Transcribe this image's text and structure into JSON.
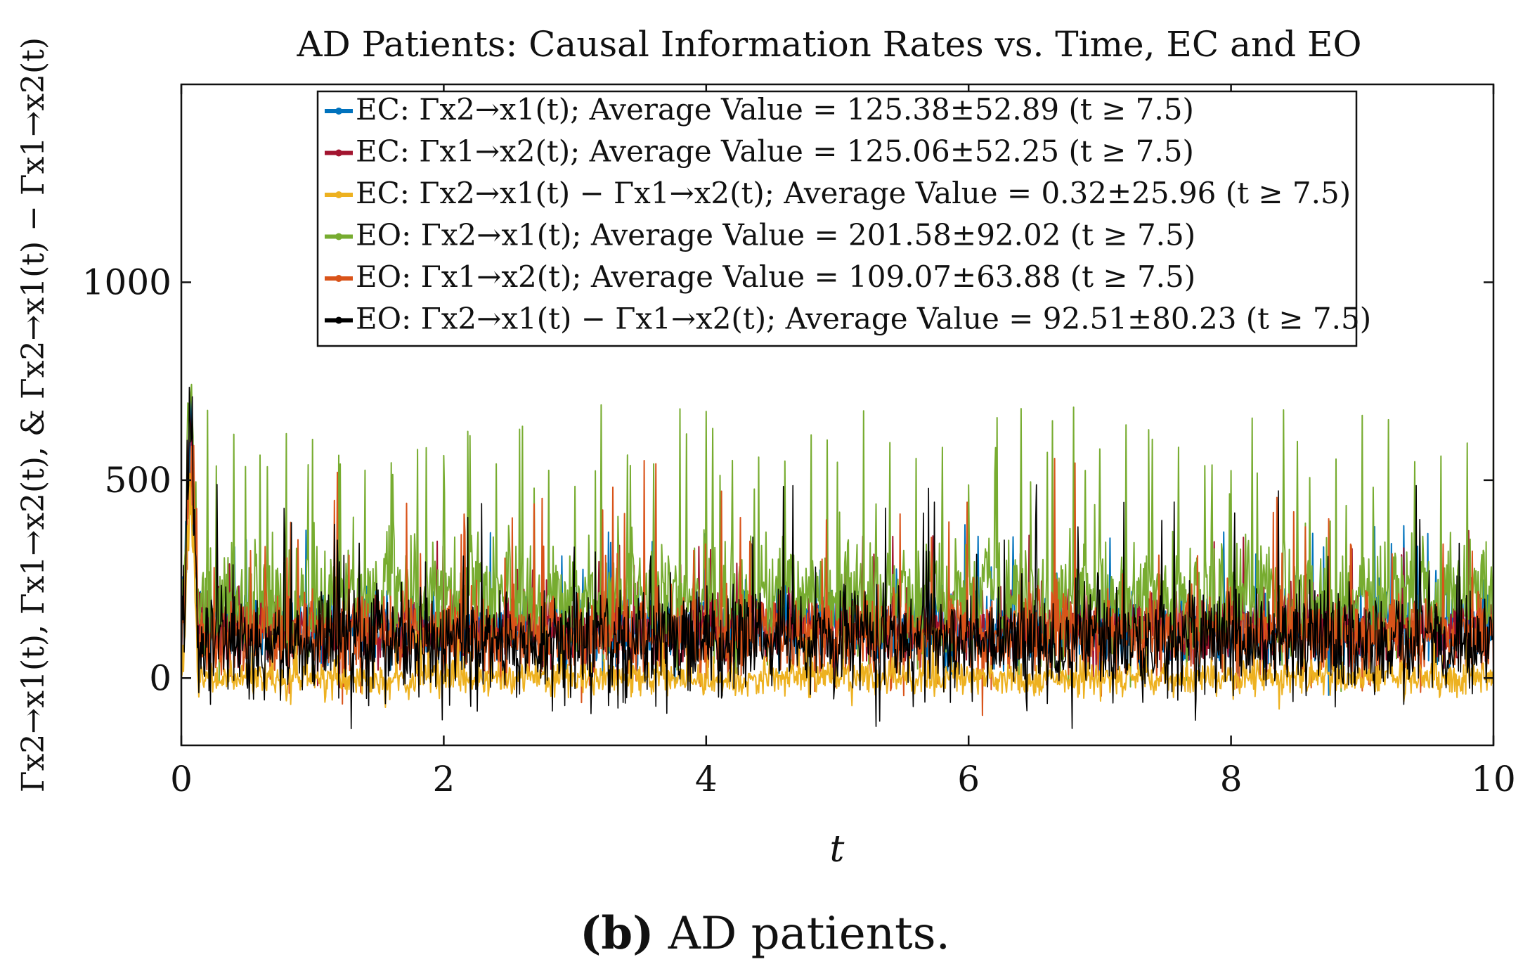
{
  "caption": {
    "label": "(b)",
    "text": "AD patients."
  },
  "chart_data": {
    "type": "line",
    "title": "AD Patients: Causal Information Rates vs. Time, EC and EO",
    "xlabel": "t",
    "ylabel": "Γx2→x1(t), Γx1→x2(t), & Γx2→x1(t) − Γx1→x2(t)",
    "xlim": [
      0,
      10
    ],
    "ylim": [
      -170,
      1500
    ],
    "xticks": [
      0,
      2,
      4,
      6,
      8,
      10
    ],
    "yticks": [
      0,
      500,
      1000
    ],
    "xtick_labels": [
      "0",
      "2",
      "4",
      "6",
      "8",
      "10"
    ],
    "ytick_labels": [
      "0",
      "500",
      "1000"
    ],
    "grid": false,
    "legend_position": "top",
    "series": [
      {
        "name": "EC: Γx2→x1(t); Average Value = 125.38±52.89 (t ≥ 7.5)",
        "color": "#0072BD",
        "mean": 125.38,
        "std": 52.89,
        "peak": 700
      },
      {
        "name": "EC: Γx1→x2(t); Average Value = 125.06±52.25 (t ≥ 7.5)",
        "color": "#A2142F",
        "mean": 125.06,
        "std": 52.25,
        "peak": 690
      },
      {
        "name": "EC: Γx2→x1(t) − Γx1→x2(t); Average Value = 0.32±25.96 (t ≥ 7.5)",
        "color": "#EDB120",
        "mean": 0.32,
        "std": 25.96,
        "peak": 550
      },
      {
        "name": "EO: Γx2→x1(t); Average Value = 201.58±92.02 (t ≥ 7.5)",
        "color": "#77AC30",
        "mean": 201.58,
        "std": 92.02,
        "peak": 840
      },
      {
        "name": "EO: Γx1→x2(t); Average Value = 109.07±63.88 (t ≥ 7.5)",
        "color": "#D95319",
        "mean": 109.07,
        "std": 63.88,
        "peak": 620
      },
      {
        "name": "EO: Γx2→x1(t) − Γx1→x2(t); Average Value = 92.51±80.23 (t ≥ 7.5)",
        "color": "#000000",
        "mean": 92.51,
        "std": 80.23,
        "peak": 770
      }
    ]
  }
}
